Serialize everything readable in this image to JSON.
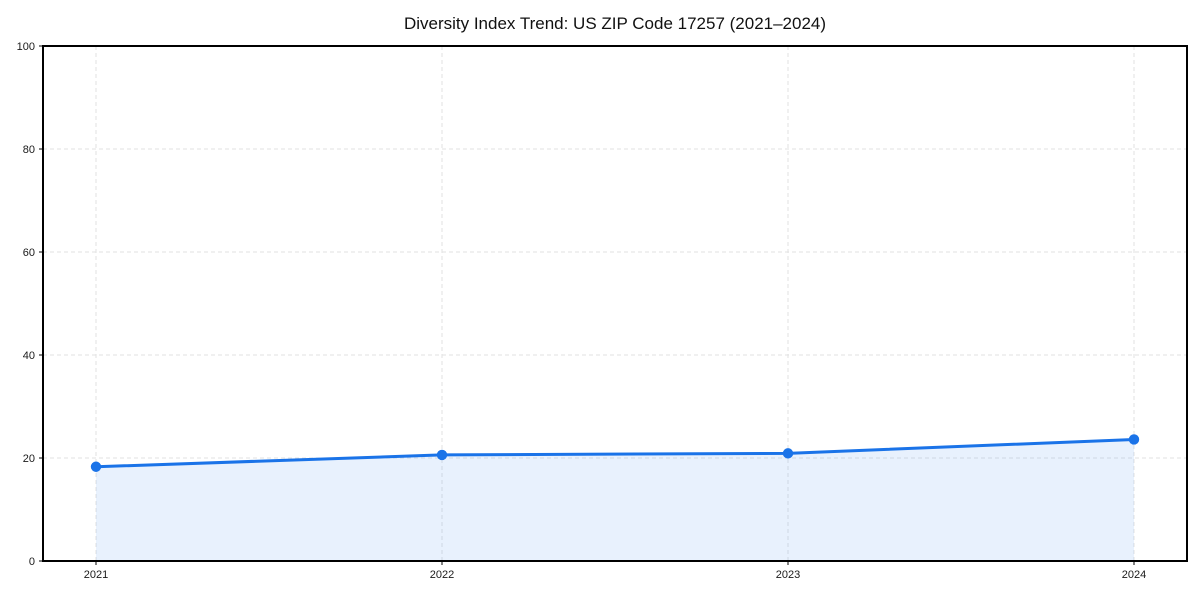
{
  "page": {
    "background_color": "#ffffff"
  },
  "chart_data": {
    "type": "area",
    "title": "Diversity Index Trend: US ZIP Code 17257 (2021–2024)",
    "categories": [
      "2021",
      "2022",
      "2023",
      "2024"
    ],
    "series": [
      {
        "name": "Diversity Index",
        "values": [
          18.3,
          20.6,
          20.9,
          23.6
        ]
      }
    ],
    "xlabel": "",
    "ylabel": "",
    "ylim": [
      0,
      100
    ],
    "yticks": [
      0,
      20,
      40,
      60,
      80,
      100
    ],
    "grid": true,
    "grid_style": "dashed",
    "legend_position": "none",
    "line_color": "#1a73e8",
    "marker_color": "#1a73e8",
    "fill_color": "#1a73e8",
    "fill_opacity": 0.1,
    "grid_color": "#e2e2e2",
    "axis_color": "#000000",
    "text_color": "#1a1a1a"
  }
}
